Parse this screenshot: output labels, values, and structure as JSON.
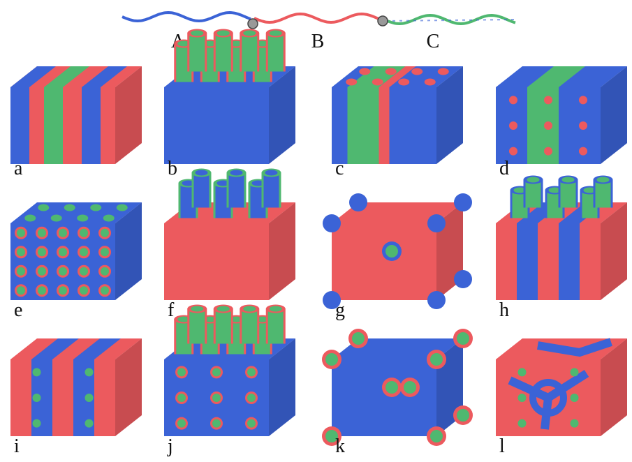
{
  "chain": {
    "labels": [
      "A",
      "B",
      "C"
    ]
  },
  "panels": [
    {
      "label": "a"
    },
    {
      "label": "b"
    },
    {
      "label": "c"
    },
    {
      "label": "d"
    },
    {
      "label": "e"
    },
    {
      "label": "f"
    },
    {
      "label": "g"
    },
    {
      "label": "h"
    },
    {
      "label": "i"
    },
    {
      "label": "j"
    },
    {
      "label": "k"
    },
    {
      "label": "l"
    }
  ]
}
